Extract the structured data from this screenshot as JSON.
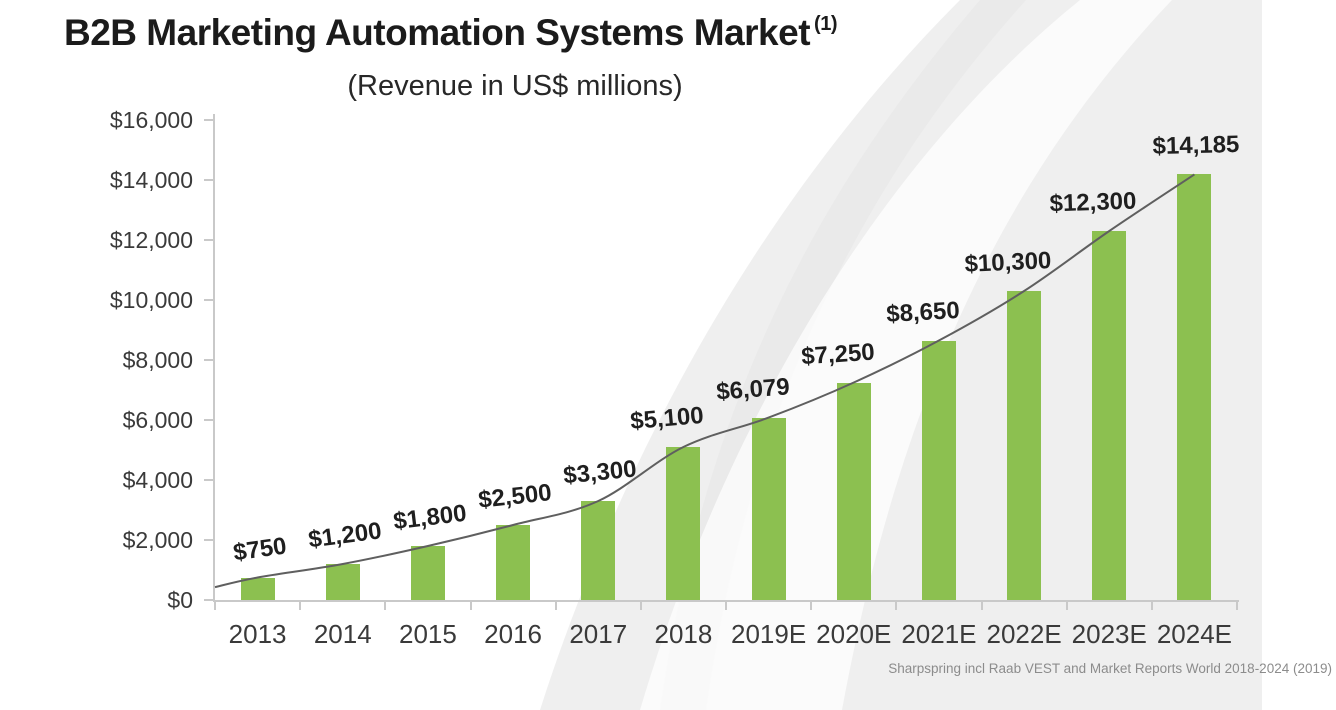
{
  "header": {
    "title": "B2B Marketing Automation Systems Market",
    "superscript": "(1)",
    "subtitle": "(Revenue in US$ millions)"
  },
  "chart_data": {
    "type": "bar",
    "title": "B2B Marketing Automation Systems Market (1)",
    "subtitle": "(Revenue in US$ millions)",
    "categories": [
      "2013",
      "2014",
      "2015",
      "2016",
      "2017",
      "2018",
      "2019E",
      "2020E",
      "2021E",
      "2022E",
      "2023E",
      "2024E"
    ],
    "values": [
      750,
      1200,
      1800,
      2500,
      3300,
      5100,
      6079,
      7250,
      8650,
      10300,
      12300,
      14185
    ],
    "value_labels": [
      "$750",
      "$1,200",
      "$1,800",
      "$2,500",
      "$3,300",
      "$5,100",
      "$6,079",
      "$7,250",
      "$8,650",
      "$10,300",
      "$12,300",
      "$14,185"
    ],
    "xlabel": "",
    "ylabel": "",
    "ylim": [
      0,
      16000
    ],
    "y_ticks": [
      0,
      2000,
      4000,
      6000,
      8000,
      10000,
      12000,
      14000,
      16000
    ],
    "y_tick_labels": [
      "$0",
      "$2,000",
      "$4,000",
      "$6,000",
      "$8,000",
      "$10,000",
      "$12,000",
      "$14,000",
      "$16,000"
    ],
    "grid": false,
    "legend": false,
    "trendline": true,
    "bar_color": "#8CC050",
    "trendline_color": "#5f5f5f",
    "axis_color": "#c9c9c9",
    "source": "Sharpspring incl Raab VEST and Market Reports World 2018-2024 (2019)"
  }
}
